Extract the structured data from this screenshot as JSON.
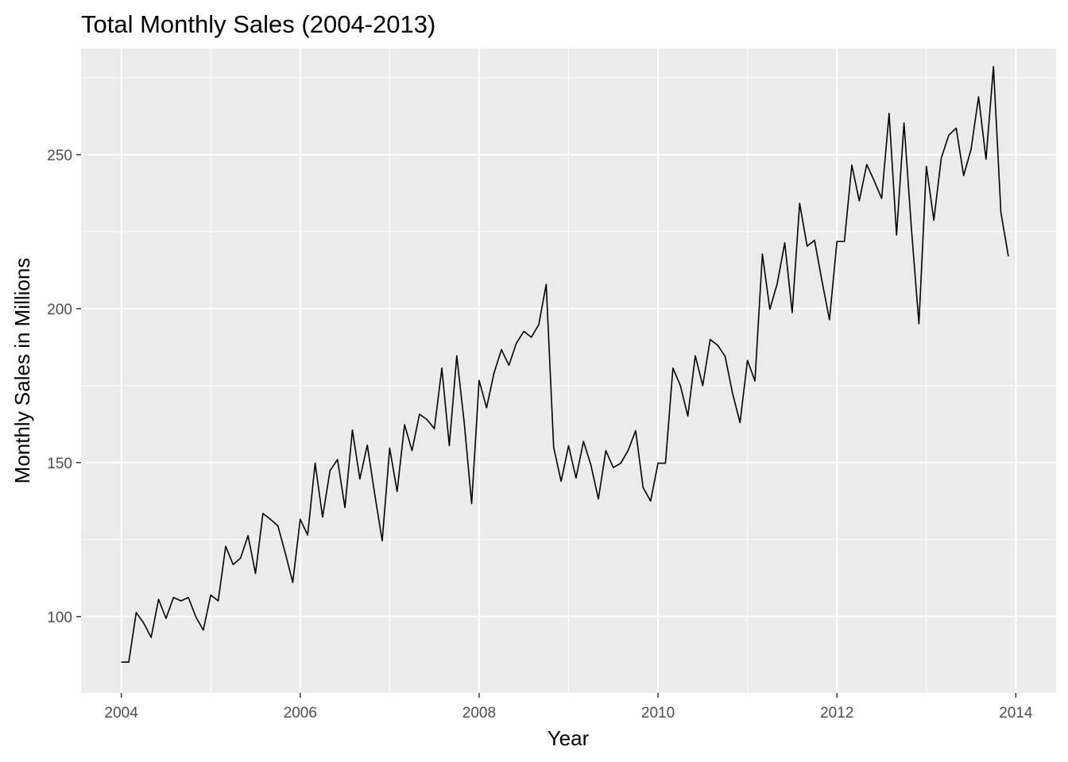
{
  "chart_data": {
    "type": "line",
    "title": "Total Monthly Sales (2004-2013)",
    "xlabel": "Year",
    "ylabel": "Monthly Sales in Millions",
    "xlim": [
      2003.55,
      2014.45
    ],
    "ylim": [
      75.2,
      284.5
    ],
    "x_ticks": [
      2004,
      2006,
      2008,
      2010,
      2012,
      2014
    ],
    "x_tick_labels": [
      "2004",
      "2006",
      "2008",
      "2010",
      "2012",
      "2014"
    ],
    "y_ticks": [
      100,
      150,
      200,
      250
    ],
    "y_tick_labels": [
      "100",
      "150",
      "200",
      "250"
    ],
    "grid": true,
    "legend": "none",
    "series": [
      {
        "start": "2004-01",
        "frequency": "monthly",
        "values": [
          85.2,
          85.2,
          101.3,
          97.9,
          93.2,
          105.6,
          99.4,
          106.2,
          105.1,
          106.2,
          99.9,
          95.6,
          107.0,
          105.1,
          122.8,
          116.9,
          119.0,
          126.3,
          114.0,
          133.5,
          131.6,
          129.5,
          120.6,
          111.1,
          131.6,
          126.5,
          149.8,
          132.3,
          147.4,
          151.0,
          135.4,
          160.6,
          144.7,
          155.7,
          139.7,
          124.6,
          154.7,
          140.6,
          162.3,
          153.9,
          165.7,
          164.0,
          161.0,
          180.7,
          155.5,
          184.7,
          163.0,
          136.7,
          176.7,
          167.8,
          179.1,
          186.7,
          181.6,
          188.8,
          192.6,
          190.7,
          194.8,
          207.9,
          155.0,
          143.9,
          155.5,
          145.0,
          156.9,
          149.2,
          138.2,
          153.9,
          148.4,
          149.8,
          154.0,
          160.4,
          141.9,
          137.5,
          149.8,
          149.8,
          180.7,
          175.0,
          165.1,
          184.7,
          175.0,
          190.0,
          188.1,
          184.5,
          172.5,
          163.0,
          183.2,
          176.5,
          217.7,
          199.8,
          208.2,
          221.4,
          198.7,
          234.2,
          220.3,
          222.2,
          208.9,
          196.4,
          221.8,
          221.8,
          246.6,
          235.0,
          246.8,
          241.5,
          235.8,
          263.4,
          223.9,
          260.3,
          225.8,
          195.1,
          246.2,
          228.7,
          248.9,
          256.3,
          258.6,
          243.2,
          251.8,
          268.8,
          248.5,
          278.6,
          231.2,
          217.0
        ]
      }
    ]
  }
}
